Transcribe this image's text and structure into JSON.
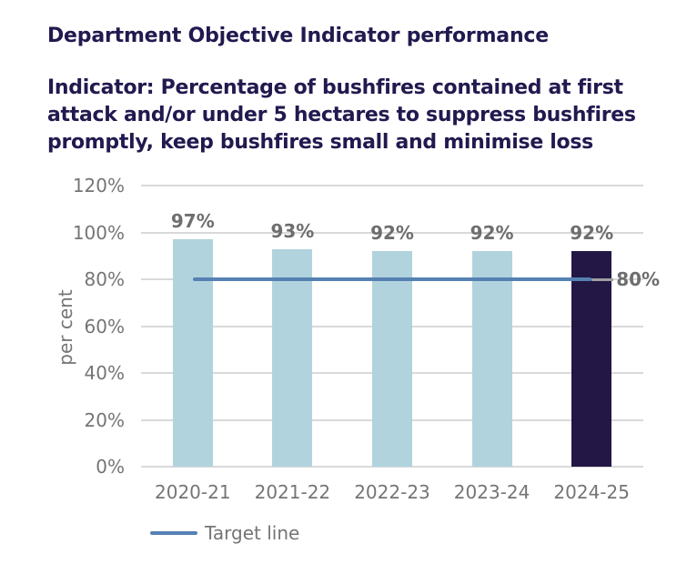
{
  "header": {
    "title": "Department Objective Indicator performance",
    "subtitle_lines": [
      "Indicator: Percentage of bushfires contained at first",
      "attack and/or under 5 hectares to suppress bushfires",
      "promptly, keep bushfires small and minimise loss"
    ],
    "title_color": "#211a4f"
  },
  "chart_data": {
    "type": "bar",
    "categories": [
      "2020-21",
      "2021-22",
      "2022-23",
      "2023-24",
      "2024-25"
    ],
    "values": [
      97,
      93,
      92,
      92,
      92
    ],
    "data_labels": [
      "97%",
      "93%",
      "92%",
      "92%",
      "92%"
    ],
    "xlabel": "",
    "ylabel": "per cent",
    "ylim": [
      0,
      120
    ],
    "ytick_step": 20,
    "ytick_labels": [
      "0%",
      "20%",
      "40%",
      "60%",
      "80%",
      "100%",
      "120%"
    ],
    "grid": true,
    "gridline_color": "#d9d9d9",
    "bar_color": "#b1d3dd",
    "highlight": {
      "index": 4,
      "color": "#221745"
    },
    "target_line": {
      "value": 80,
      "label": "80%",
      "color": "#5581b3",
      "leader_color": "#9e9e9e",
      "legend_label": "Target line"
    },
    "text_colors": {
      "axis": "#757575",
      "data_label": "#6e6e6e"
    },
    "legend_position": "bottom-left"
  }
}
